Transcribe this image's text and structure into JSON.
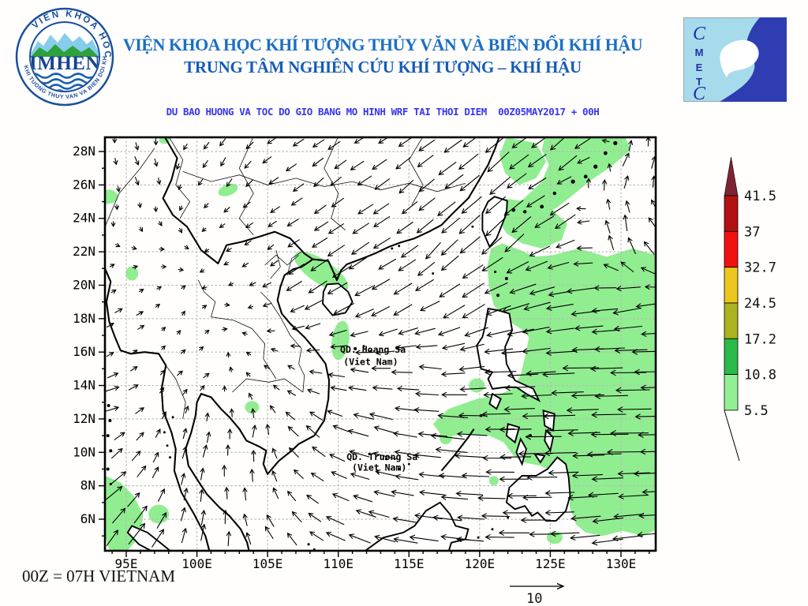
{
  "header": {
    "org_line1": "VIỆN KHOA HỌC KHÍ TƯỢNG THỦY VĂN VÀ BIẾN ĐỔI KHÍ HẬU",
    "org_line2": "TRUNG TÂM NGHIÊN CỨU KHÍ TƯỢNG – KHÍ HẬU",
    "imhen_logo": {
      "arc_top": "VIEN KHOA HOC",
      "arc_bottom": "KHI TUONG THUY VAN VA BIEN DOI KHI HAU",
      "center": "IMHEN"
    },
    "cmetc_logo": {
      "letters": [
        "C",
        "M",
        "E",
        "T",
        "C"
      ]
    }
  },
  "subtitle": "DU BAO HUONG VA TOC DO GIO BANG MO HINH WRF TAI THOI DIEM  00Z05MAY2017 + 00H",
  "footer": {
    "note": "00Z = 07H VIETNAM"
  },
  "chart_data": {
    "type": "vector-field-map",
    "title": "DU BAO HUONG VA TOC DO GIO BANG MO HINH WRF TAI THOI DIEM 00Z05MAY2017 + 00H",
    "projection": {
      "lon_range": [
        93.5,
        132.5
      ],
      "lat_range": [
        4.1,
        28.85
      ]
    },
    "lon_ticks": [
      {
        "v": 95,
        "label": "95E"
      },
      {
        "v": 100,
        "label": "100E"
      },
      {
        "v": 105,
        "label": "105E"
      },
      {
        "v": 110,
        "label": "110E"
      },
      {
        "v": 115,
        "label": "115E"
      },
      {
        "v": 120,
        "label": "120E"
      },
      {
        "v": 125,
        "label": "125E"
      },
      {
        "v": 130,
        "label": "130E"
      }
    ],
    "lat_ticks": [
      {
        "v": 28,
        "label": "28N"
      },
      {
        "v": 26,
        "label": "26N"
      },
      {
        "v": 24,
        "label": "24N"
      },
      {
        "v": 22,
        "label": "22N"
      },
      {
        "v": 20,
        "label": "20N"
      },
      {
        "v": 18,
        "label": "18N"
      },
      {
        "v": 16,
        "label": "16N"
      },
      {
        "v": 14,
        "label": "14N"
      },
      {
        "v": 12,
        "label": "12N"
      },
      {
        "v": 10,
        "label": "10N"
      },
      {
        "v": 8,
        "label": "8N"
      },
      {
        "v": 6,
        "label": "6N"
      }
    ],
    "legend": {
      "values": [
        "41.5",
        "37",
        "32.7",
        "24.5",
        "17.2",
        "10.8",
        "5.5"
      ],
      "segment_colors": [
        "#b31111",
        "#f21111",
        "#eac61f",
        "#a9b41f",
        "#2aba4a",
        "#93ef93"
      ],
      "arrow_tip_color": "#7d2333"
    },
    "shade_color": "#90ee90",
    "shade_threshold": 5.5,
    "reference_vector": {
      "label": "10"
    },
    "map_labels": [
      {
        "text": "QD. Hoang Sa",
        "lon": 112.45,
        "lat": 15.97
      },
      {
        "text": "(Viet Nam)",
        "lon": 112.3,
        "lat": 15.22
      },
      {
        "text": "QD. Truong Sa",
        "lon": 113.1,
        "lat": 9.55
      },
      {
        "text": "(Viet Nam)",
        "lon": 112.9,
        "lat": 8.9
      }
    ],
    "wind_field_format": "[lon, lat, u(m/s east), v(m/s north)]",
    "wind_field": [
      [
        96,
        27,
        1,
        -2
      ],
      [
        102,
        27,
        -1,
        -2
      ],
      [
        109,
        26,
        -2,
        -2
      ],
      [
        115,
        26,
        -3,
        -3
      ],
      [
        121,
        27,
        -5,
        -5
      ],
      [
        126,
        28,
        -5,
        -5
      ],
      [
        131,
        27,
        3,
        4
      ],
      [
        130,
        23,
        1,
        5.2
      ],
      [
        126,
        24,
        -5,
        -4
      ],
      [
        122,
        23,
        -4,
        -5
      ],
      [
        120,
        23.5,
        -5,
        -5
      ],
      [
        117,
        22,
        -3,
        -4
      ],
      [
        111,
        22,
        -4,
        -3
      ],
      [
        105,
        22,
        -1,
        -1
      ],
      [
        98,
        22,
        1,
        0
      ],
      [
        95,
        18,
        2,
        1
      ],
      [
        94,
        13,
        4,
        1
      ],
      [
        94,
        8,
        4,
        3
      ],
      [
        96,
        5,
        4,
        5
      ],
      [
        101,
        5,
        1,
        4
      ],
      [
        106,
        5,
        -2,
        3
      ],
      [
        111,
        5,
        -5,
        2
      ],
      [
        117,
        5,
        -7,
        1
      ],
      [
        123,
        5,
        -7,
        0
      ],
      [
        129,
        5,
        -7,
        -1
      ],
      [
        100,
        10,
        1,
        3
      ],
      [
        104,
        11,
        1,
        3
      ],
      [
        108,
        11,
        -3,
        3
      ],
      [
        113,
        11,
        -6,
        2
      ],
      [
        118,
        11,
        -8,
        1
      ],
      [
        124,
        11,
        -8.5,
        0
      ],
      [
        130,
        11,
        -9,
        0
      ],
      [
        100,
        15,
        2,
        1
      ],
      [
        106,
        15,
        -1,
        1
      ],
      [
        111,
        15,
        -4,
        1
      ],
      [
        116,
        15,
        -5,
        1
      ],
      [
        122,
        15,
        -7.5,
        0
      ],
      [
        127,
        15,
        -8.5,
        0
      ],
      [
        131,
        15,
        -8.5,
        0
      ],
      [
        110,
        19,
        -5,
        -3
      ],
      [
        108,
        20.5,
        -4.5,
        -3.5
      ],
      [
        114,
        19,
        -4,
        -3
      ],
      [
        119,
        19,
        -5,
        -4
      ],
      [
        123,
        19,
        -6.5,
        -2
      ],
      [
        127,
        19,
        -7,
        -1
      ],
      [
        131,
        19,
        -7,
        -2
      ],
      [
        102,
        18,
        1,
        0
      ],
      [
        104,
        8,
        0,
        3
      ],
      [
        128,
        25.5,
        2,
        4
      ],
      [
        131,
        22,
        -2,
        4
      ]
    ]
  }
}
